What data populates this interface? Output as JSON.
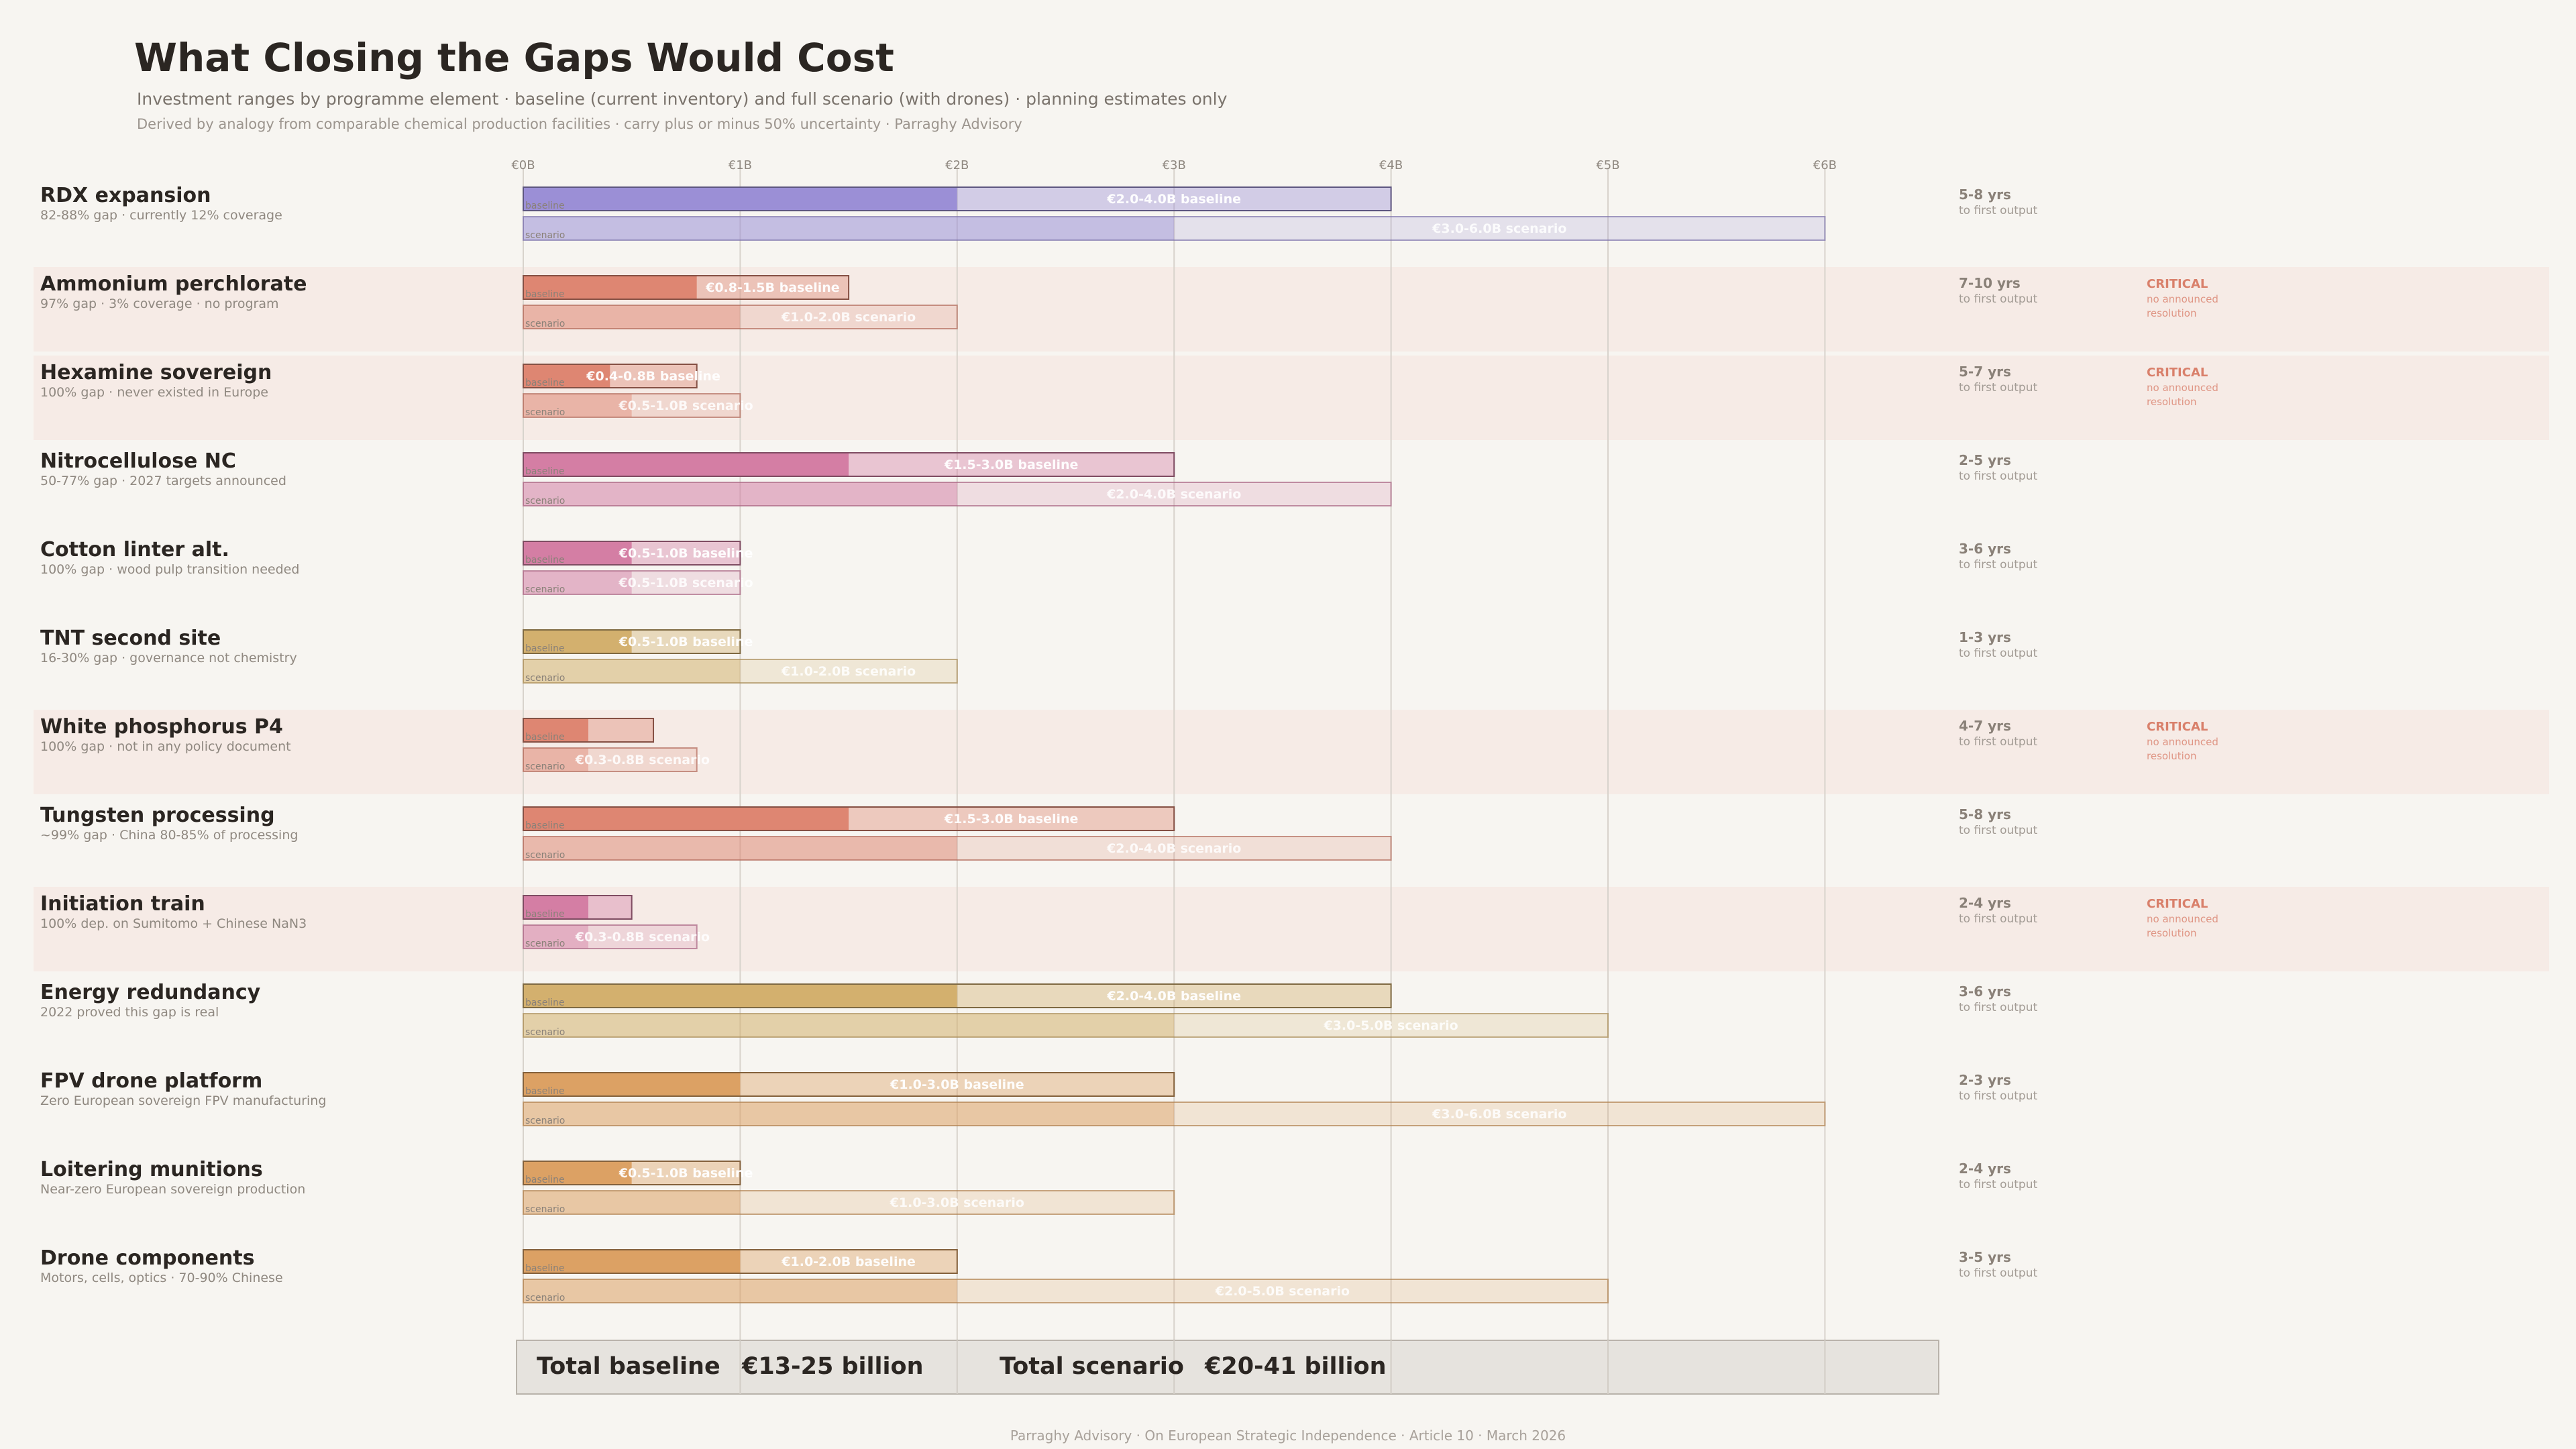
{
  "header": {
    "title": "What Closing the Gaps Would Cost",
    "subtitle": "Investment ranges by programme element  ·  baseline (current inventory) and full scenario (with drones)  ·  planning estimates only",
    "note": "Derived by analogy from comparable chemical production facilities  ·  carry plus or minus 50% uncertainty  ·  Parraghy Advisory"
  },
  "footer": "Parraghy Advisory  ·  On European Strategic Independence  ·  Article 10  ·  March 2026",
  "labels": {
    "baseline_tag": "baseline",
    "scenario_tag": "scenario",
    "timeline_suffix": "to first output",
    "critical": "CRITICAL",
    "critical_note_1": "no announced",
    "critical_note_2": "resolution"
  },
  "totals": {
    "baseline_label": "Total baseline",
    "baseline_value": "€13-25 billion",
    "scenario_label": "Total scenario",
    "scenario_value": "€20-41 billion"
  },
  "colors": {
    "purple": "#9b8fd6",
    "salmon": "#de8672",
    "pink": "#d47ea4",
    "gold": "#d3b06e",
    "orange": "#dca164",
    "critical": "#d9806b",
    "highlight_band": "#f6ebe6"
  },
  "chart_data": {
    "type": "bar",
    "subtype": "range",
    "unit": "€ billion",
    "xlim": [
      0,
      6
    ],
    "ticks": [
      "€0B",
      "€1B",
      "€2B",
      "€3B",
      "€4B",
      "€5B",
      "€6B"
    ],
    "grid": true,
    "rows": [
      {
        "name": "RDX expansion",
        "detail": "82-88% gap  ·  currently 12% coverage",
        "color": "purple",
        "baseline": [
          2,
          4
        ],
        "baseline_label": "€2.0-4.0B baseline",
        "scenario": [
          3,
          6
        ],
        "scenario_label": "€3.0-6.0B scenario",
        "timeline": "5-8 yrs",
        "critical": false
      },
      {
        "name": "Ammonium perchlorate",
        "detail": "97% gap  ·  3% coverage  ·  no program",
        "color": "salmon",
        "baseline": [
          0.8,
          1.5
        ],
        "baseline_label": "€0.8-1.5B baseline",
        "scenario": [
          1,
          2
        ],
        "scenario_label": "€1.0-2.0B scenario",
        "timeline": "7-10 yrs",
        "critical": true
      },
      {
        "name": "Hexamine sovereign",
        "detail": "100% gap  ·  never existed in Europe",
        "color": "salmon",
        "baseline": [
          0.4,
          0.8
        ],
        "baseline_label": "€0.4-0.8B baseline",
        "scenario": [
          0.5,
          1
        ],
        "scenario_label": "€0.5-1.0B scenario",
        "timeline": "5-7 yrs",
        "critical": true
      },
      {
        "name": "Nitrocellulose NC",
        "detail": "50-77% gap  ·  2027 targets announced",
        "color": "pink",
        "baseline": [
          1.5,
          3
        ],
        "baseline_label": "€1.5-3.0B baseline",
        "scenario": [
          2,
          4
        ],
        "scenario_label": "€2.0-4.0B scenario",
        "timeline": "2-5 yrs",
        "critical": false
      },
      {
        "name": "Cotton linter alt.",
        "detail": "100% gap  ·  wood pulp transition needed",
        "color": "pink",
        "baseline": [
          0.5,
          1
        ],
        "baseline_label": "€0.5-1.0B baseline",
        "scenario": [
          0.5,
          1
        ],
        "scenario_label": "€0.5-1.0B scenario",
        "timeline": "3-6 yrs",
        "critical": false
      },
      {
        "name": "TNT second site",
        "detail": "16-30% gap  ·  governance not chemistry",
        "color": "gold",
        "baseline": [
          0.5,
          1
        ],
        "baseline_label": "€0.5-1.0B baseline",
        "scenario": [
          1,
          2
        ],
        "scenario_label": "€1.0-2.0B scenario",
        "timeline": "1-3 yrs",
        "critical": false
      },
      {
        "name": "White phosphorus P4",
        "detail": "100% gap  ·  not in any policy document",
        "color": "salmon",
        "baseline": [
          0.3,
          0.6
        ],
        "baseline_label": "",
        "scenario": [
          0.3,
          0.8
        ],
        "scenario_label": "€0.3-0.8B scenario",
        "timeline": "4-7 yrs",
        "critical": true
      },
      {
        "name": "Tungsten processing",
        "detail": "~99% gap  ·  China 80-85% of processing",
        "color": "salmon",
        "baseline": [
          1.5,
          3
        ],
        "baseline_label": "€1.5-3.0B baseline",
        "scenario": [
          2,
          4
        ],
        "scenario_label": "€2.0-4.0B scenario",
        "timeline": "5-8 yrs",
        "critical": false
      },
      {
        "name": "Initiation train",
        "detail": "100% dep. on Sumitomo + Chinese NaN3",
        "color": "pink",
        "baseline": [
          0.3,
          0.5
        ],
        "baseline_label": "",
        "scenario": [
          0.3,
          0.8
        ],
        "scenario_label": "€0.3-0.8B scenario",
        "timeline": "2-4 yrs",
        "critical": true
      },
      {
        "name": "Energy redundancy",
        "detail": "2022 proved this gap is real",
        "color": "gold",
        "baseline": [
          2,
          4
        ],
        "baseline_label": "€2.0-4.0B baseline",
        "scenario": [
          3,
          5
        ],
        "scenario_label": "€3.0-5.0B scenario",
        "timeline": "3-6 yrs",
        "critical": false
      },
      {
        "name": "FPV drone platform",
        "detail": "Zero European sovereign FPV manufacturing",
        "color": "orange",
        "baseline": [
          1,
          3
        ],
        "baseline_label": "€1.0-3.0B baseline",
        "scenario": [
          3,
          6
        ],
        "scenario_label": "€3.0-6.0B scenario",
        "timeline": "2-3 yrs",
        "critical": false
      },
      {
        "name": "Loitering munitions",
        "detail": "Near-zero European sovereign production",
        "color": "orange",
        "baseline": [
          0.5,
          1
        ],
        "baseline_label": "€0.5-1.0B baseline",
        "scenario": [
          1,
          3
        ],
        "scenario_label": "€1.0-3.0B scenario",
        "timeline": "2-4 yrs",
        "critical": false
      },
      {
        "name": "Drone components",
        "detail": "Motors, cells, optics  ·  70-90% Chinese",
        "color": "orange",
        "baseline": [
          1,
          2
        ],
        "baseline_label": "€1.0-2.0B baseline",
        "scenario": [
          2,
          5
        ],
        "scenario_label": "€2.0-5.0B scenario",
        "timeline": "3-5 yrs",
        "critical": false
      }
    ]
  }
}
